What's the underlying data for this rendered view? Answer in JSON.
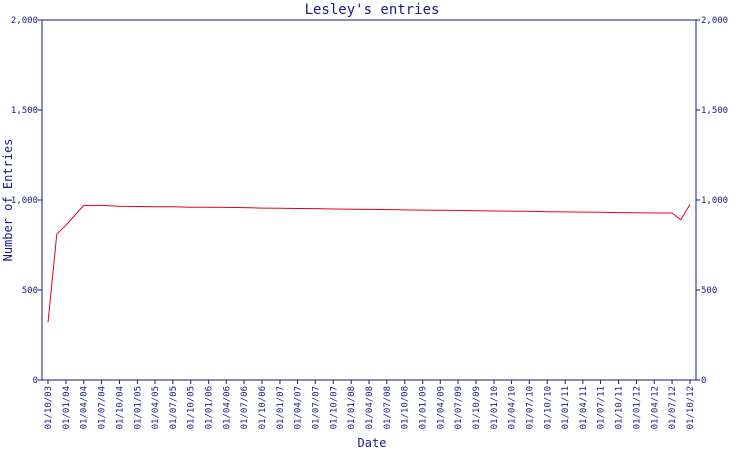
{
  "chart_data": {
    "type": "line",
    "title": "Lesley's entries",
    "xlabel": "Date",
    "ylabel": "Number of Entries",
    "ylim": [
      0,
      2000
    ],
    "y_ticks": [
      0,
      500,
      "1,000",
      "1,500",
      "2,000"
    ],
    "y_tick_values": [
      0,
      500,
      1000,
      1500,
      2000
    ],
    "y_tick_labels": [
      "0",
      "500",
      "1,000",
      "1,500",
      "2,000"
    ],
    "x_tick_labels": [
      "01/10/03",
      "01/01/04",
      "01/04/04",
      "01/07/04",
      "01/10/04",
      "01/01/05",
      "01/04/05",
      "01/07/05",
      "01/10/05",
      "01/01/06",
      "01/04/06",
      "01/07/06",
      "01/10/06",
      "01/01/07",
      "01/04/07",
      "01/07/07",
      "01/10/07",
      "01/01/08",
      "01/04/08",
      "01/07/08",
      "01/10/08",
      "01/01/09",
      "01/04/09",
      "01/07/09",
      "01/10/09",
      "01/01/10",
      "01/04/10",
      "01/07/10",
      "01/10/10",
      "01/01/11",
      "01/04/11",
      "01/07/11",
      "01/10/11",
      "01/01/12",
      "01/04/12",
      "01/07/12",
      "01/10/12"
    ],
    "grid": false,
    "right_axis": true,
    "line_color": "#e8001a",
    "axis_color": "#1a1a80",
    "series": [
      {
        "x": [
          "01/10/03",
          "15/11/03",
          "01/01/04",
          "01/04/04",
          "01/07/04",
          "01/10/04",
          "01/01/05",
          "01/04/05",
          "01/07/05",
          "01/10/05",
          "01/01/06",
          "01/04/06",
          "01/07/06",
          "01/10/06",
          "01/01/07",
          "01/04/07",
          "01/07/07",
          "01/10/07",
          "01/01/08",
          "01/04/08",
          "01/07/08",
          "01/10/08",
          "01/01/09",
          "01/04/09",
          "01/07/09",
          "01/10/09",
          "01/01/10",
          "01/04/10",
          "01/07/10",
          "01/10/10",
          "01/01/11",
          "01/04/11",
          "01/07/11",
          "01/10/11",
          "01/01/12",
          "01/04/12",
          "01/07/12",
          "15/08/12",
          "01/10/12"
        ],
        "values": [
          320,
          810,
          860,
          970,
          970,
          965,
          964,
          963,
          962,
          960,
          960,
          959,
          958,
          955,
          954,
          953,
          952,
          950,
          949,
          948,
          947,
          945,
          944,
          943,
          942,
          940,
          939,
          938,
          937,
          935,
          934,
          933,
          932,
          930,
          929,
          928,
          928,
          890,
          975
        ]
      }
    ]
  }
}
